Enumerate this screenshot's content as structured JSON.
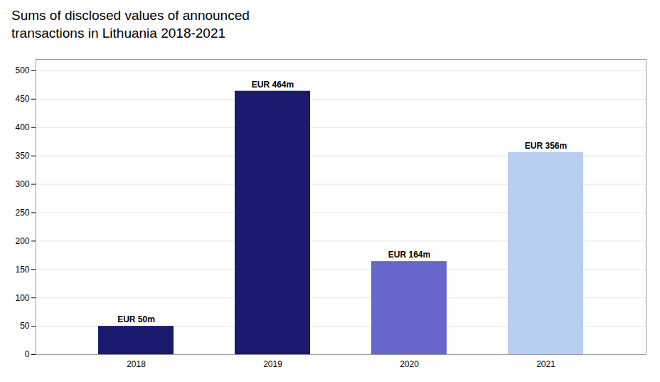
{
  "chart_data": {
    "type": "bar",
    "title": "Sums of disclosed values of announced\ntransactions in Lithuania 2018-2021",
    "categories": [
      "2018",
      "2019",
      "2020",
      "2021"
    ],
    "values": [
      50,
      464,
      164,
      356
    ],
    "value_labels": [
      "EUR 50m",
      "EUR 464m",
      "EUR 164m",
      "EUR 356m"
    ],
    "data_labels": true,
    "colors": [
      "#1a1a6e",
      "#1a1a6e",
      "#6666cc",
      "#b8cef0"
    ],
    "ylim": [
      0,
      520
    ],
    "yticks": [
      0,
      50,
      100,
      150,
      200,
      250,
      300,
      350,
      400,
      450,
      500
    ],
    "grid": true
  }
}
